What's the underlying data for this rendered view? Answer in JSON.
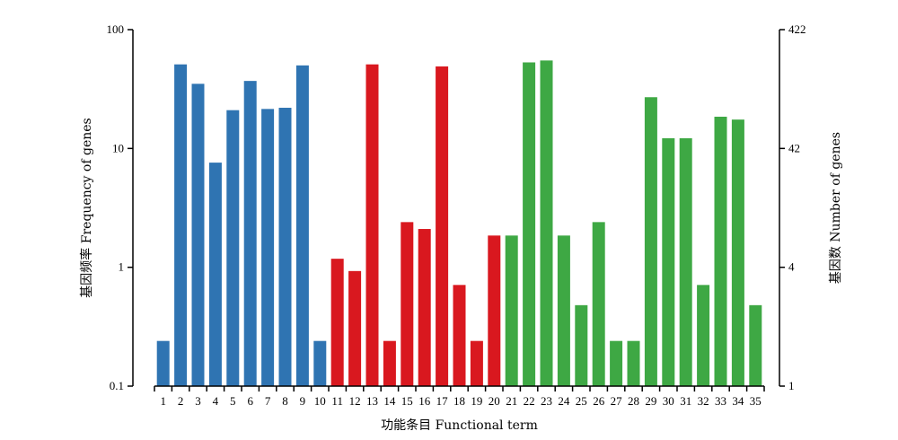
{
  "chart_data": {
    "type": "bar",
    "xlabel": "功能条目 Functional term",
    "ylabel_left": "基因频率 Frequency of genes",
    "ylabel_right": "基因数 Number of genes",
    "yscale": "log",
    "ylim": [
      0.1,
      100
    ],
    "left_ticks": [
      "100",
      "10",
      "1",
      "0.1"
    ],
    "right_ticks": [
      "422",
      "42",
      "4",
      "1"
    ],
    "categories": [
      "1",
      "2",
      "3",
      "4",
      "5",
      "6",
      "7",
      "8",
      "9",
      "10",
      "11",
      "12",
      "13",
      "14",
      "15",
      "16",
      "17",
      "18",
      "19",
      "20",
      "21",
      "22",
      "23",
      "24",
      "25",
      "26",
      "27",
      "28",
      "29",
      "30",
      "31",
      "32",
      "33",
      "34",
      "35"
    ],
    "values": [
      0.24,
      51,
      35,
      7.6,
      21,
      37,
      21.5,
      22,
      50,
      0.24,
      1.18,
      0.93,
      51,
      0.24,
      2.4,
      2.1,
      49,
      0.71,
      0.24,
      1.85,
      1.85,
      53,
      55,
      1.85,
      0.48,
      2.4,
      0.24,
      0.24,
      27,
      12.2,
      12.2,
      0.71,
      18.5,
      17.5,
      0.48
    ],
    "groups": [
      {
        "from": 1,
        "to": 10,
        "color": "#2f74b2"
      },
      {
        "from": 11,
        "to": 20,
        "color": "#d9181f"
      },
      {
        "from": 21,
        "to": 35,
        "color": "#3ea844"
      }
    ],
    "grid": false,
    "legend": "none"
  }
}
